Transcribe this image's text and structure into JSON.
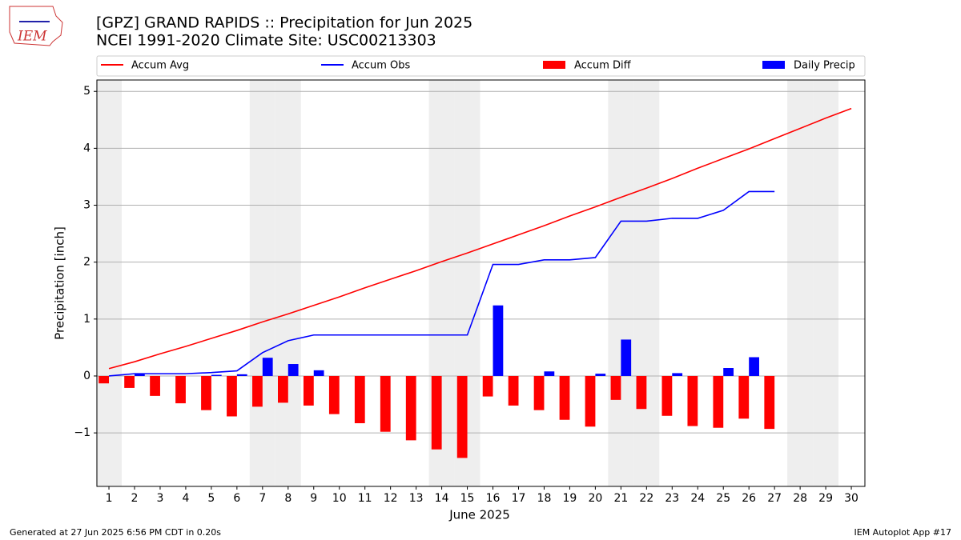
{
  "chart_data": {
    "type": "combo",
    "title": "[GPZ] GRAND RAPIDS :: Precipitation for Jun 2025",
    "subtitle": "NCEI 1991-2020 Climate Site: USC00213303",
    "x_label": "June 2025",
    "y_label": "Precipitation [inch]",
    "logo_text": "IEM",
    "footer_left": "Generated at 27 Jun 2025 6:56 PM CDT in 0.20s",
    "footer_right": "IEM Autoplot App #17",
    "x": [
      1,
      2,
      3,
      4,
      5,
      6,
      7,
      8,
      9,
      10,
      11,
      12,
      13,
      14,
      15,
      16,
      17,
      18,
      19,
      20,
      21,
      22,
      23,
      24,
      25,
      26,
      27,
      28,
      29,
      30
    ],
    "xlim": [
      0.53,
      30.53
    ],
    "xticks": [
      1,
      2,
      3,
      4,
      5,
      6,
      7,
      8,
      9,
      10,
      11,
      12,
      13,
      14,
      15,
      16,
      17,
      18,
      19,
      20,
      21,
      22,
      23,
      24,
      25,
      26,
      27,
      28,
      29,
      30
    ],
    "ylim": [
      -1.94,
      5.2
    ],
    "yticks": [
      {
        "value": -1,
        "label": "−1"
      },
      0,
      1,
      2,
      3,
      4,
      5
    ],
    "grid": true,
    "shaded_days": [
      1,
      7,
      8,
      14,
      15,
      21,
      22,
      28,
      29
    ],
    "series": [
      {
        "name": "Accum Avg",
        "type": "line",
        "color": "#ff0000",
        "values": [
          0.13,
          0.25,
          0.39,
          0.52,
          0.66,
          0.8,
          0.95,
          1.09,
          1.24,
          1.39,
          1.55,
          1.7,
          1.85,
          2.01,
          2.16,
          2.32,
          2.48,
          2.64,
          2.81,
          2.97,
          3.14,
          3.3,
          3.47,
          3.65,
          3.82,
          3.99,
          4.17,
          4.35,
          4.53,
          4.7
        ]
      },
      {
        "name": "Accum Obs",
        "type": "line",
        "color": "#0000ff",
        "values": [
          0.0,
          0.04,
          0.04,
          0.04,
          0.06,
          0.09,
          0.41,
          0.62,
          0.72,
          0.72,
          0.72,
          0.72,
          0.72,
          0.72,
          0.72,
          1.96,
          1.96,
          2.04,
          2.04,
          2.08,
          2.72,
          2.72,
          2.77,
          2.77,
          2.91,
          3.24,
          3.24,
          null,
          null,
          null
        ]
      },
      {
        "name": "Accum Diff",
        "type": "bar",
        "color": "#ff0000",
        "values": [
          -0.13,
          -0.21,
          -0.35,
          -0.48,
          -0.6,
          -0.71,
          -0.54,
          -0.47,
          -0.52,
          -0.67,
          -0.83,
          -0.98,
          -1.13,
          -1.29,
          -1.44,
          -0.36,
          -0.52,
          -0.6,
          -0.77,
          -0.89,
          -0.42,
          -0.58,
          -0.7,
          -0.88,
          -0.91,
          -0.75,
          -0.93,
          null,
          null,
          null
        ]
      },
      {
        "name": "Daily Precip",
        "type": "bar",
        "color": "#0000ff",
        "values": [
          0,
          0.04,
          0,
          0,
          0.02,
          0.03,
          0.32,
          0.21,
          0.1,
          0,
          0,
          0,
          0,
          0,
          0,
          1.24,
          0,
          0.08,
          0,
          0.04,
          0.64,
          0,
          0.05,
          0,
          0.14,
          0.33,
          0,
          null,
          null,
          null
        ]
      }
    ]
  }
}
